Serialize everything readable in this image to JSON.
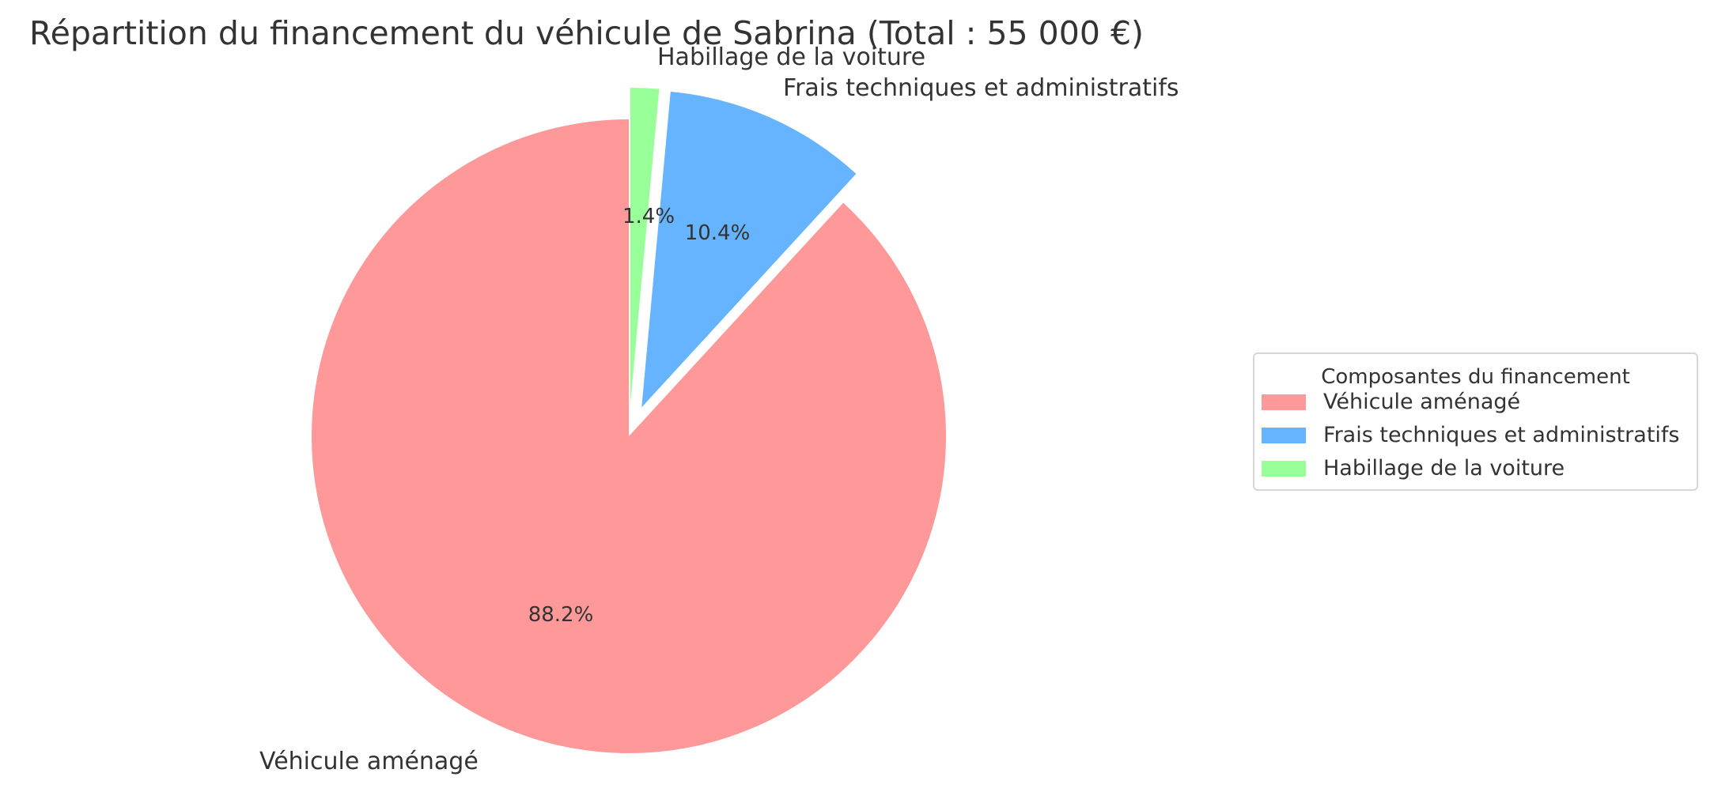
{
  "chart_data": {
    "type": "pie",
    "title": "Répartition du financement du véhicule de Sabrina (Total : 55 000 €)",
    "total": 55000,
    "currency": "€",
    "categories": [
      "Véhicule aménagé",
      "Frais techniques et administratifs",
      "Habillage de la voiture"
    ],
    "values": [
      48500,
      5700,
      800
    ],
    "percentages": [
      88.2,
      10.4,
      1.4
    ],
    "percent_labels": [
      "88.2%",
      "10.4%",
      "1.4%"
    ],
    "colors": [
      "#ff9999",
      "#66b3ff",
      "#99ff99"
    ],
    "explode": [
      0,
      0.1,
      0.1
    ],
    "start_angle": 90,
    "legend": {
      "title": "Composantes du financement",
      "position": "right",
      "entries": [
        "Véhicule aménagé",
        "Frais techniques et administratifs",
        "Habillage de la voiture"
      ]
    }
  }
}
